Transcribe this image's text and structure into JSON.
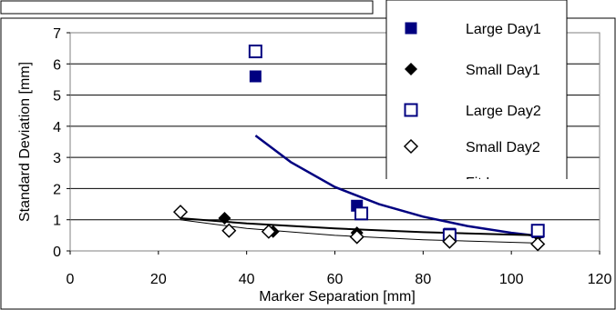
{
  "chart_data": {
    "type": "scatter",
    "xlabel": "Marker Separation [mm]",
    "ylabel": "Standard Deviation [mm]",
    "xlim": [
      0,
      120
    ],
    "ylim": [
      0,
      7
    ],
    "xticks": [
      0,
      20,
      40,
      60,
      80,
      100,
      120
    ],
    "yticks": [
      0,
      1,
      2,
      3,
      4,
      5,
      6,
      7
    ],
    "grid": "horizontal",
    "legend_position": "top-right",
    "colors": {
      "dark_blue": "#000080",
      "black": "#000000"
    },
    "series": [
      {
        "name": "Large Day1",
        "marker": "square-filled",
        "color": "#000080",
        "x": [
          42,
          65,
          86,
          106
        ],
        "y": [
          5.6,
          1.45,
          0.55,
          0.6
        ]
      },
      {
        "name": "Small Day1",
        "marker": "diamond-filled",
        "color": "#000000",
        "x": [
          25,
          35,
          46,
          65,
          86,
          106
        ],
        "y": [
          1.25,
          1.05,
          0.62,
          0.58,
          0.4,
          0.5
        ]
      },
      {
        "name": "Large Day2",
        "marker": "square-open",
        "color": "#000080",
        "x": [
          42,
          66,
          86,
          106
        ],
        "y": [
          6.4,
          1.2,
          0.5,
          0.65
        ]
      },
      {
        "name": "Small Day2",
        "marker": "diamond-open",
        "color": "#000000",
        "x": [
          25,
          36,
          45,
          65,
          86,
          106
        ],
        "y": [
          1.25,
          0.65,
          0.62,
          0.45,
          0.3,
          0.22
        ]
      }
    ],
    "trendlines": [
      {
        "color": "#000080",
        "width": 2.5,
        "x": [
          42,
          50,
          60,
          70,
          80,
          90,
          100,
          106
        ],
        "y": [
          3.7,
          2.85,
          2.05,
          1.5,
          1.1,
          0.8,
          0.58,
          0.48
        ]
      },
      {
        "color": "#000000",
        "width": 2,
        "x": [
          25,
          40,
          60,
          80,
          106
        ],
        "y": [
          1.05,
          0.88,
          0.72,
          0.6,
          0.5
        ]
      },
      {
        "color": "#000000",
        "width": 1,
        "x": [
          25,
          40,
          60,
          80,
          106
        ],
        "y": [
          1.0,
          0.72,
          0.5,
          0.36,
          0.25
        ]
      }
    ],
    "legend_extra_partial": "Fit L..."
  }
}
